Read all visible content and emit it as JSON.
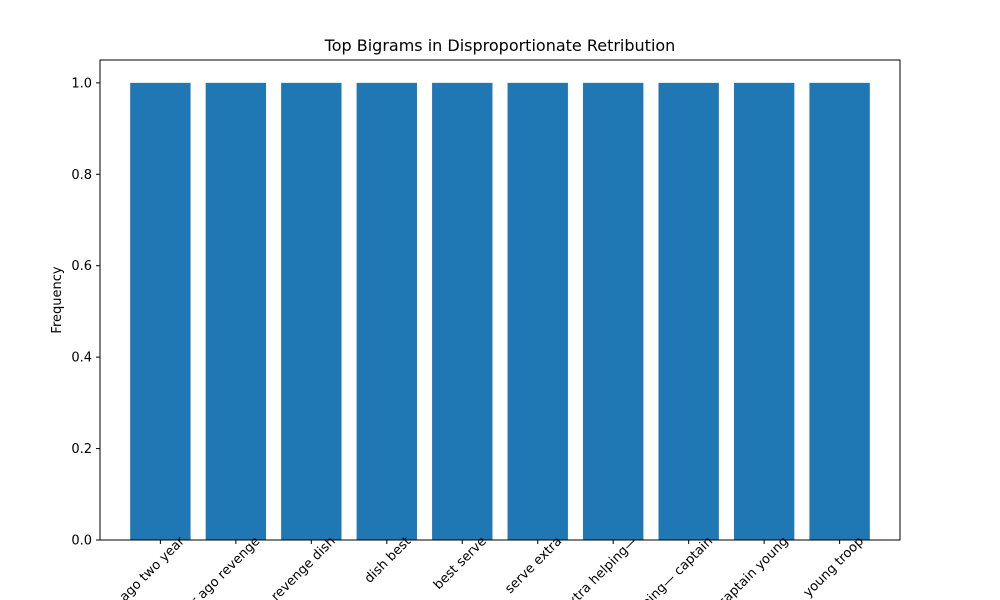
{
  "chart_data": {
    "type": "bar",
    "title": "Top Bigrams in Disproportionate Retribution",
    "xlabel": "",
    "ylabel": "Frequency",
    "categories": [
      "ago two year",
      "year ago revenge",
      "revenge dish",
      "dish best",
      "best serve",
      "serve extra",
      "extra helping—",
      "helping— captain",
      "captain young",
      "young troop"
    ],
    "values": [
      1,
      1,
      1,
      1,
      1,
      1,
      1,
      1,
      1,
      1
    ],
    "ylim": [
      0,
      1.05
    ],
    "yticks": [
      0.0,
      0.2,
      0.4,
      0.6,
      0.8,
      1.0
    ],
    "ytick_labels": [
      "0.0",
      "0.2",
      "0.4",
      "0.6",
      "0.8",
      "1.0"
    ],
    "bar_color": "#1f77b4",
    "grid": false,
    "xtick_rotation": "45"
  }
}
